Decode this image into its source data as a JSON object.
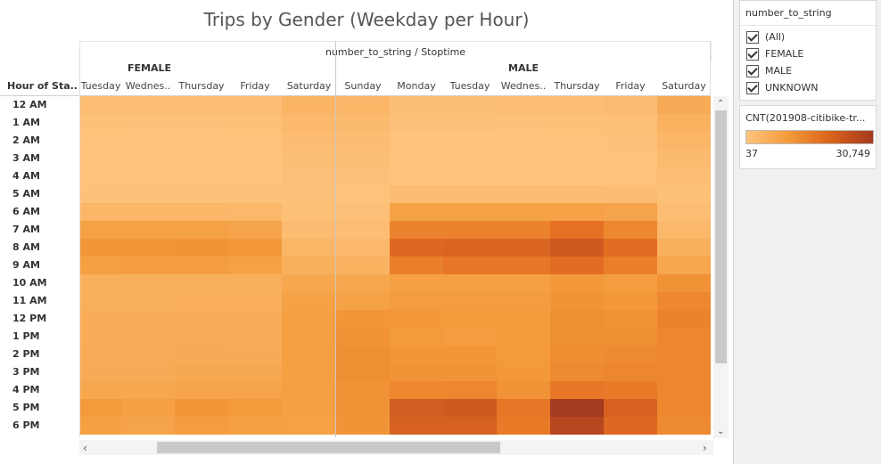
{
  "title": "Trips by Gender (Weekday per Hour)",
  "header": {
    "column_field": "number_to_string / Stoptime",
    "row_field": "Hour of Sta..",
    "female": "FEMALE",
    "male": "MALE"
  },
  "filter": {
    "title": "number_to_string",
    "items": [
      "(All)",
      "FEMALE",
      "MALE",
      "UNKNOWN"
    ]
  },
  "legend": {
    "title": "CNT(201908-citibike-tr...",
    "min": "37",
    "max": "30,749",
    "colors": [
      "#ffc47e",
      "#a43a1f"
    ]
  },
  "chart_data": {
    "type": "heatmap",
    "title": "Trips by Gender (Weekday per Hour)",
    "xlabel": "number_to_string / Stoptime",
    "ylabel": "Hour of Starttime",
    "range": [
      37,
      30749
    ],
    "columns": [
      {
        "group": "FEMALE",
        "day": "Tuesday",
        "label": "Tuesday"
      },
      {
        "group": "FEMALE",
        "day": "Wednesday",
        "label": "Wednes.."
      },
      {
        "group": "FEMALE",
        "day": "Thursday",
        "label": "Thursday"
      },
      {
        "group": "FEMALE",
        "day": "Friday",
        "label": "Friday"
      },
      {
        "group": "FEMALE",
        "day": "Saturday",
        "label": "Saturday"
      },
      {
        "group": "MALE",
        "day": "Sunday",
        "label": "Sunday"
      },
      {
        "group": "MALE",
        "day": "Monday",
        "label": "Monday"
      },
      {
        "group": "MALE",
        "day": "Tuesday",
        "label": "Tuesday"
      },
      {
        "group": "MALE",
        "day": "Wednesday",
        "label": "Wednes.."
      },
      {
        "group": "MALE",
        "day": "Thursday",
        "label": "Thursday"
      },
      {
        "group": "MALE",
        "day": "Friday",
        "label": "Friday"
      },
      {
        "group": "MALE",
        "day": "Saturday",
        "label": "Saturday"
      }
    ],
    "rows": [
      "12 AM",
      "1 AM",
      "2 AM",
      "3 AM",
      "4 AM",
      "5 AM",
      "6 AM",
      "7 AM",
      "8 AM",
      "9 AM",
      "10 AM",
      "11 AM",
      "12 PM",
      "1 PM",
      "2 PM",
      "3 PM",
      "4 PM",
      "5 PM",
      "6 PM"
    ],
    "values": [
      [
        1500,
        1400,
        1400,
        1500,
        3500,
        3000,
        1200,
        1300,
        1500,
        1500,
        2000,
        5500
      ],
      [
        800,
        700,
        700,
        800,
        2500,
        2200,
        600,
        600,
        700,
        800,
        1100,
        4000
      ],
      [
        500,
        400,
        400,
        500,
        1800,
        1700,
        350,
        350,
        400,
        500,
        700,
        3000
      ],
      [
        300,
        250,
        250,
        300,
        1200,
        1200,
        250,
        250,
        300,
        350,
        450,
        2200
      ],
      [
        250,
        200,
        200,
        250,
        900,
        900,
        300,
        300,
        350,
        300,
        400,
        1600
      ],
      [
        700,
        700,
        700,
        700,
        600,
        500,
        1800,
        1800,
        1800,
        1800,
        1700,
        800
      ],
      [
        3000,
        3000,
        3000,
        2800,
        1000,
        900,
        7500,
        7500,
        7500,
        7500,
        7000,
        1500
      ],
      [
        7500,
        7500,
        7500,
        7000,
        1800,
        1500,
        14000,
        14000,
        14000,
        18000,
        13000,
        2800
      ],
      [
        10000,
        10000,
        10500,
        9500,
        3000,
        2500,
        20000,
        21000,
        21000,
        24000,
        19000,
        4500
      ],
      [
        8000,
        8500,
        8500,
        7500,
        4500,
        4000,
        15000,
        16500,
        16500,
        19000,
        15000,
        6500
      ],
      [
        4500,
        4500,
        4500,
        4500,
        6500,
        6500,
        8000,
        8000,
        8000,
        9500,
        8500,
        11000
      ],
      [
        4500,
        4500,
        4800,
        4800,
        7500,
        7500,
        8500,
        8500,
        8500,
        10500,
        9500,
        13000
      ],
      [
        5000,
        5000,
        5200,
        5000,
        8000,
        10000,
        9500,
        9000,
        9000,
        11500,
        11000,
        14000
      ],
      [
        5000,
        5000,
        5200,
        5000,
        8000,
        11000,
        9000,
        8500,
        9000,
        11500,
        11500,
        13500
      ],
      [
        5200,
        5200,
        5500,
        5500,
        8000,
        11500,
        10000,
        10000,
        9000,
        12000,
        12500,
        13500
      ],
      [
        5500,
        5500,
        6000,
        6000,
        8000,
        11500,
        10500,
        10500,
        9500,
        12500,
        13500,
        13500
      ],
      [
        6500,
        6500,
        7000,
        7000,
        8000,
        11000,
        13000,
        13500,
        11000,
        16500,
        16000,
        13500
      ],
      [
        9000,
        8000,
        10000,
        9000,
        8000,
        11000,
        23000,
        24000,
        17000,
        30749,
        22000,
        13000
      ],
      [
        8000,
        7000,
        8500,
        8000,
        7500,
        10500,
        22000,
        22000,
        16000,
        28000,
        20000,
        12500
      ]
    ]
  }
}
